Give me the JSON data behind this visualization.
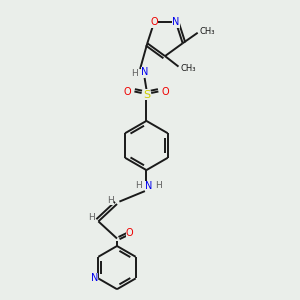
{
  "bg_color": "#eaeeea",
  "bond_color": "#1a1a1a",
  "atom_colors": {
    "N": "#0000ee",
    "O": "#ee0000",
    "S": "#cccc00",
    "C": "#1a1a1a",
    "H": "#606060"
  },
  "figsize": [
    3.0,
    3.0
  ],
  "dpi": 100
}
